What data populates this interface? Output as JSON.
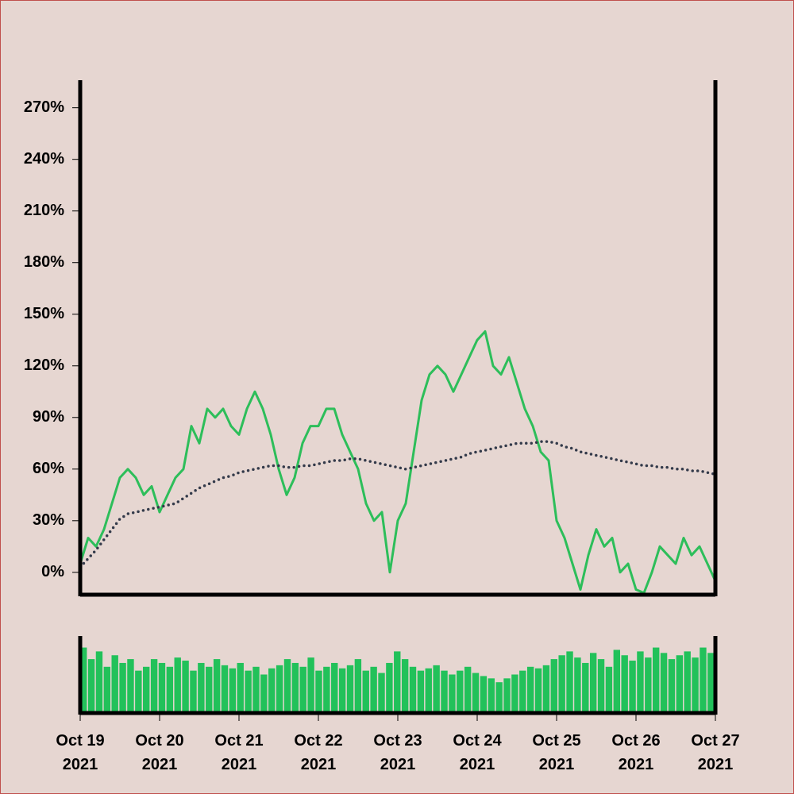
{
  "chart_data": [
    {
      "type": "line",
      "xlim": [
        "2021-10-19",
        "2021-10-27"
      ],
      "ylim": [
        -13,
        286
      ],
      "yticks": [
        {
          "value": 0,
          "label": "0%"
        },
        {
          "value": 30,
          "label": "30%"
        },
        {
          "value": 60,
          "label": "60%"
        },
        {
          "value": 90,
          "label": "90%"
        },
        {
          "value": 120,
          "label": "120%"
        },
        {
          "value": 150,
          "label": "150%"
        },
        {
          "value": 180,
          "label": "180%"
        },
        {
          "value": 210,
          "label": "210%"
        },
        {
          "value": 240,
          "label": "240%"
        },
        {
          "value": 270,
          "label": "270%"
        }
      ],
      "series": [
        {
          "color": "#2dbe5a",
          "style": "solid",
          "values": [
            5,
            20,
            15,
            25,
            40,
            55,
            60,
            55,
            45,
            50,
            35,
            45,
            55,
            60,
            85,
            75,
            95,
            90,
            95,
            85,
            80,
            95,
            105,
            95,
            80,
            60,
            45,
            55,
            75,
            85,
            85,
            95,
            95,
            80,
            70,
            60,
            40,
            30,
            35,
            0,
            30,
            40,
            70,
            100,
            115,
            120,
            115,
            105,
            115,
            125,
            135,
            140,
            120,
            115,
            125,
            110,
            95,
            85,
            70,
            65,
            30,
            20,
            5,
            -10,
            10,
            25,
            15,
            20,
            0,
            5,
            -10,
            -12,
            0,
            15,
            10,
            5,
            20,
            10,
            15,
            5,
            -5
          ]
        },
        {
          "color": "#333a4a",
          "style": "dotted",
          "values": [
            3,
            8,
            13,
            19,
            25,
            31,
            34,
            35,
            36,
            37,
            38,
            39,
            40,
            43,
            46,
            49,
            51,
            53,
            55,
            56,
            58,
            59,
            60,
            61,
            62,
            62,
            61,
            61,
            62,
            62,
            63,
            64,
            65,
            65,
            66,
            66,
            65,
            64,
            63,
            62,
            61,
            60,
            61,
            62,
            63,
            64,
            65,
            66,
            67,
            69,
            70,
            71,
            72,
            73,
            74,
            75,
            75,
            75,
            76,
            76,
            75,
            73,
            72,
            70,
            69,
            68,
            67,
            66,
            65,
            64,
            63,
            62,
            62,
            61,
            61,
            60,
            60,
            59,
            59,
            58,
            57
          ]
        }
      ]
    },
    {
      "type": "bar",
      "color": "#22c15a",
      "xlim": [
        "2021-10-19",
        "2021-10-27"
      ],
      "ylim": [
        0,
        100
      ],
      "xticks": [
        {
          "value": "2021-10-19",
          "label": "Oct 19 2021"
        },
        {
          "value": "2021-10-20",
          "label": "Oct 20 2021"
        },
        {
          "value": "2021-10-21",
          "label": "Oct 21 2021"
        },
        {
          "value": "2021-10-22",
          "label": "Oct 22 2021"
        },
        {
          "value": "2021-10-23",
          "label": "Oct 23 2021"
        },
        {
          "value": "2021-10-24",
          "label": "Oct 24 2021"
        },
        {
          "value": "2021-10-25",
          "label": "Oct 25 2021"
        },
        {
          "value": "2021-10-26",
          "label": "Oct 26 2021"
        },
        {
          "value": "2021-10-27",
          "label": "Oct 27 2021"
        }
      ],
      "values": [
        85,
        70,
        80,
        60,
        75,
        65,
        70,
        55,
        60,
        70,
        65,
        60,
        72,
        68,
        55,
        65,
        60,
        70,
        62,
        58,
        65,
        55,
        60,
        50,
        58,
        62,
        70,
        65,
        60,
        72,
        55,
        60,
        65,
        58,
        62,
        70,
        55,
        60,
        52,
        65,
        80,
        70,
        60,
        55,
        58,
        62,
        55,
        50,
        55,
        60,
        52,
        48,
        45,
        40,
        45,
        50,
        55,
        60,
        58,
        62,
        70,
        75,
        80,
        72,
        65,
        78,
        70,
        60,
        82,
        75,
        68,
        80,
        72,
        85,
        78,
        70,
        75,
        80,
        72,
        85,
        78
      ]
    }
  ]
}
